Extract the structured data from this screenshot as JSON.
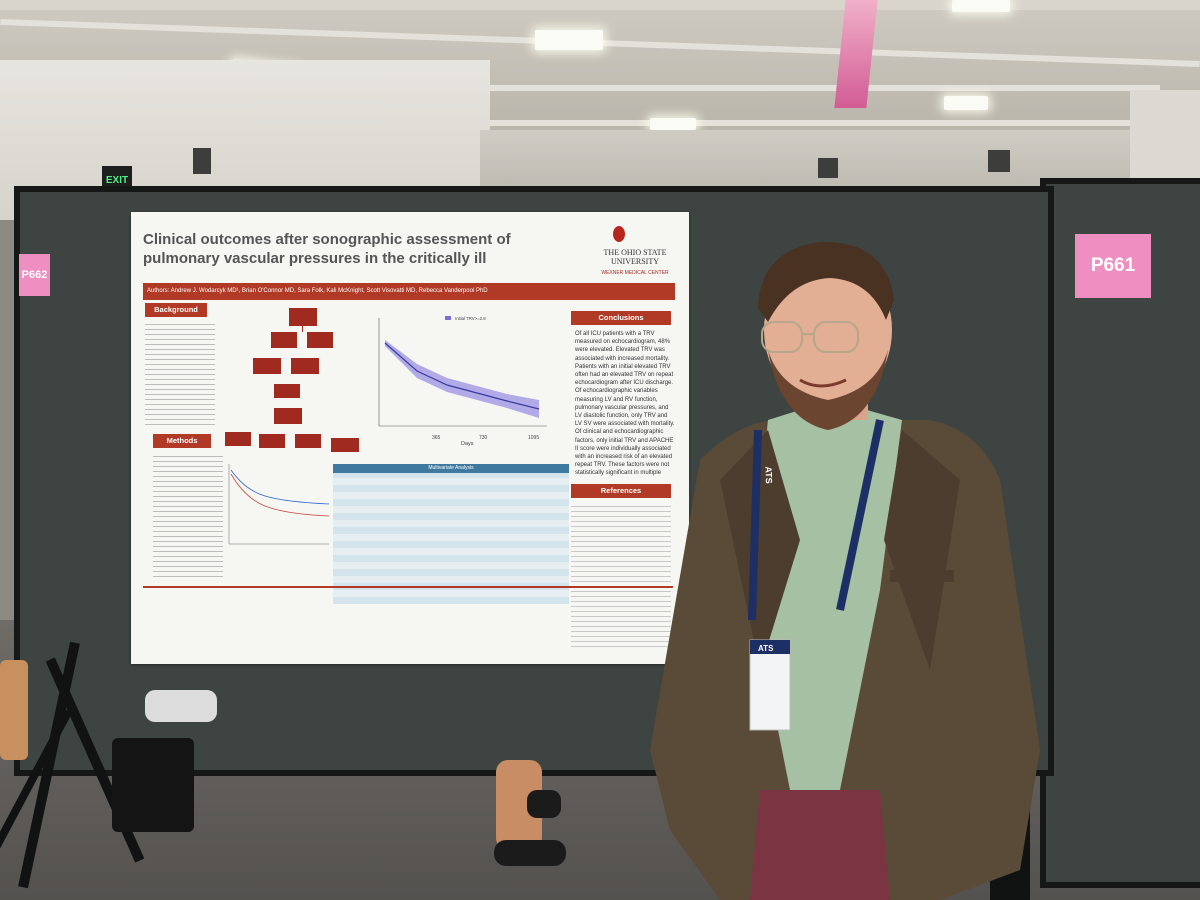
{
  "scene": {
    "exit_sign": "EXIT",
    "booth_labels": {
      "main_board": "P662",
      "right_board": "P661"
    }
  },
  "poster": {
    "title": "Clinical outcomes after sonographic assessment of pulmonary vascular pressures in the critically ill",
    "institution": {
      "line1": "THE OHIO STATE",
      "line2": "UNIVERSITY",
      "line3": "WEXNER MEDICAL CENTER"
    },
    "authors": "Authors: Andrew J. Wodarcyk MD¹, Brian O'Connor MD, Sara Folk, Kali McKnight, Scott Visovatti MD, Rebecca Vanderpool PhD",
    "sections": {
      "background": "Background",
      "methods": "Methods",
      "conclusions": "Conclusions",
      "references": "References"
    },
    "multivariate_table_title": "Multivariate Analysis",
    "chart_legend": "Initial TRV>=2.8",
    "chart_xlabel": "Days",
    "chart_xticks": [
      "0",
      "365",
      "730",
      "1095"
    ],
    "conclusions_text": "Of all ICU patients with a TRV measured on echocardiogram, 48% were elevated. Elevated TRV was associated with increased mortality. Patients with an initial elevated TRV often had an elevated TRV on repeat echocardiogram after ICU discharge. Of echocardiographic variables measuring LV and RV function, pulmonary vascular pressures, and LV diastolic function, only TRV and LV SV were associated with mortality. Of clinical and echocardiographic factors, only initial TRV and APACHE II score were individually associated with an increased risk of an elevated repeat TRV. These factors were not statistically significant in multiple logistic regression analysis."
  },
  "lanyard": {
    "text": "ATS"
  },
  "badge": {
    "org": "ATS"
  }
}
